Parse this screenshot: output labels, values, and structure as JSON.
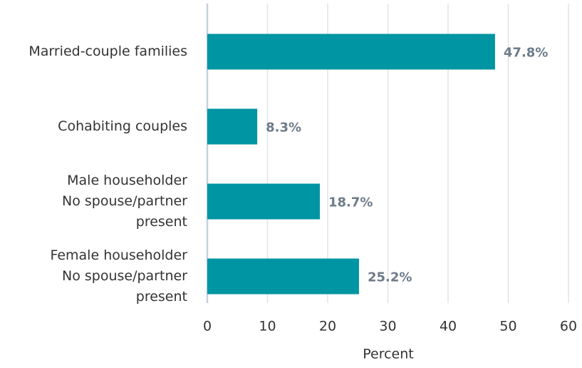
{
  "chart_data": {
    "type": "hbar",
    "categories": [
      [
        "Married-couple families"
      ],
      [
        "Cohabiting couples"
      ],
      [
        "Male householder",
        "No spouse/partner",
        "present"
      ],
      [
        "Female householder",
        "No spouse/partner",
        "present"
      ]
    ],
    "values": [
      47.8,
      8.3,
      18.7,
      25.2
    ],
    "value_labels": [
      "47.8%",
      "8.3%",
      "18.7%",
      "25.2%"
    ],
    "color": "#0095a3",
    "xlim": [
      0,
      60
    ],
    "xticks": [
      0,
      10,
      20,
      30,
      40,
      50,
      60
    ],
    "xlabel": "Percent",
    "grid": true
  }
}
